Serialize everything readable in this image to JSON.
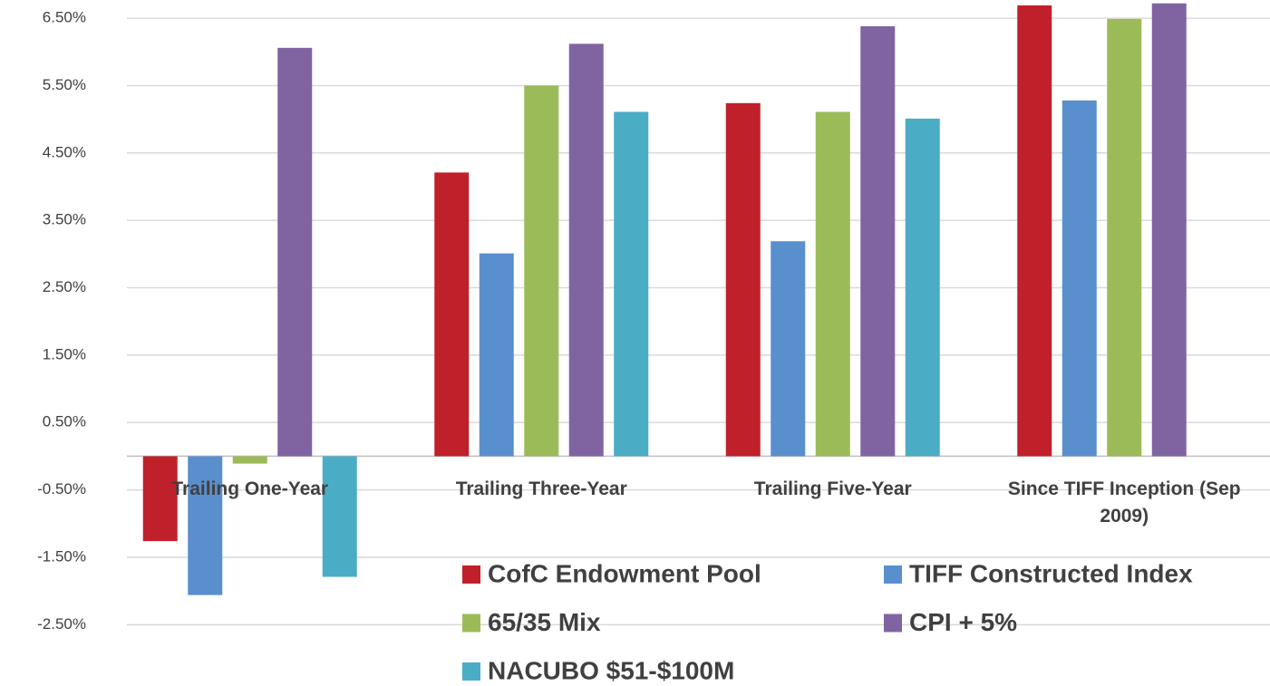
{
  "chart_data": {
    "type": "bar",
    "categories": [
      "Trailing One-Year",
      "Trailing Three-Year",
      "Trailing Five-Year",
      "Since TIFF Inception (Sep 2009)"
    ],
    "series": [
      {
        "name": "CofC Endowment Pool",
        "color": "#c0202a",
        "values": [
          -1.26,
          4.21,
          5.24,
          6.69
        ]
      },
      {
        "name": "TIFF Constructed Index",
        "color": "#5a8fce",
        "values": [
          -2.06,
          3.01,
          3.19,
          5.28
        ]
      },
      {
        "name": "65/35 Mix",
        "color": "#9bbb59",
        "values": [
          -0.11,
          5.5,
          5.11,
          6.49
        ]
      },
      {
        "name": "CPI + 5%",
        "color": "#8064a2",
        "values": [
          6.06,
          6.12,
          6.38,
          6.72
        ]
      },
      {
        "name": "NACUBO $51-$100M",
        "color": "#4bacc6",
        "values": [
          -1.79,
          5.11,
          5.01,
          null
        ]
      }
    ],
    "ylim": [
      -3.41,
      6.77
    ],
    "yticks": [
      {
        "value": 6.5,
        "label": "6.50%"
      },
      {
        "value": 5.5,
        "label": "5.50%"
      },
      {
        "value": 4.5,
        "label": "4.50%"
      },
      {
        "value": 3.5,
        "label": "3.50%"
      },
      {
        "value": 2.5,
        "label": "2.50%"
      },
      {
        "value": 1.5,
        "label": "1.50%"
      },
      {
        "value": 0.5,
        "label": "0.50%"
      },
      {
        "value": -0.5,
        "label": "-0.50%"
      },
      {
        "value": -1.5,
        "label": "-1.50%"
      },
      {
        "value": -2.5,
        "label": "-2.50%"
      }
    ],
    "grid": true
  }
}
